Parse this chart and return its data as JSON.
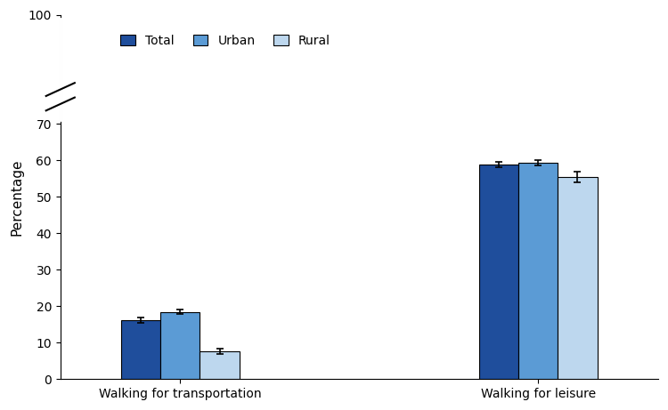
{
  "groups": [
    "Walking for transportation",
    "Walking for leisure"
  ],
  "categories": [
    "Total",
    "Urban",
    "Rural"
  ],
  "values": [
    [
      16.1,
      18.4,
      7.6
    ],
    [
      58.8,
      59.4,
      55.5
    ]
  ],
  "errors": [
    [
      0.7,
      0.6,
      0.8
    ],
    [
      0.7,
      0.8,
      1.5
    ]
  ],
  "colors": [
    "#1f4e9c",
    "#5b9bd5",
    "#bdd7ee"
  ],
  "bar_edge_color": "#000000",
  "ylabel": "Percentage",
  "ylim": [
    0,
    100
  ],
  "yticks": [
    0,
    10,
    20,
    30,
    40,
    50,
    60,
    70,
    100
  ],
  "yticklabels": [
    "0",
    "10",
    "20",
    "30",
    "40",
    "50",
    "60",
    "70",
    "100"
  ],
  "legend_labels": [
    "Total",
    "Urban",
    "Rural"
  ],
  "bar_width": 0.22,
  "figsize": [
    7.5,
    4.61
  ],
  "dpi": 100,
  "background_color": "#ffffff",
  "axis_color": "#000000",
  "error_cap_size": 3,
  "error_line_width": 1.2,
  "error_color": "#000000",
  "font_size_axis_label": 11,
  "font_size_tick": 10,
  "font_size_legend": 10
}
